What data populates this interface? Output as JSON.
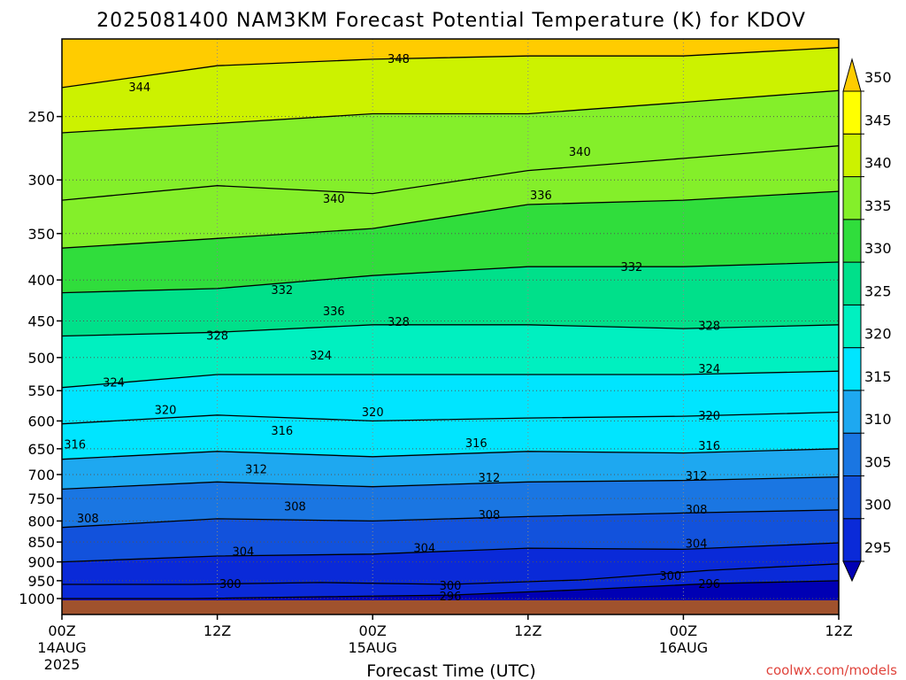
{
  "chart_data": {
    "type": "heatmap",
    "title": "2025081400 NAM3KM Forecast Potential Temperature (K) for KDOV",
    "xlabel": "Forecast Time (UTC)",
    "ylabel": "",
    "y_scale": "log",
    "ylim": [
      1000,
      200
    ],
    "xlim_hours": [
      0,
      60
    ],
    "y_ticks": [
      "250",
      "300",
      "350",
      "400",
      "450",
      "500",
      "550",
      "600",
      "650",
      "700",
      "750",
      "800",
      "850",
      "900",
      "950",
      "1000"
    ],
    "x_ticks": [
      {
        "hour": 0,
        "label": "00Z",
        "sub1": "14AUG",
        "sub2": "2025"
      },
      {
        "hour": 12,
        "label": "12Z",
        "sub1": "",
        "sub2": ""
      },
      {
        "hour": 24,
        "label": "00Z",
        "sub1": "15AUG",
        "sub2": ""
      },
      {
        "hour": 36,
        "label": "12Z",
        "sub1": "",
        "sub2": ""
      },
      {
        "hour": 48,
        "label": "00Z",
        "sub1": "16AUG",
        "sub2": ""
      },
      {
        "hour": 60,
        "label": "12Z",
        "sub1": "",
        "sub2": ""
      }
    ],
    "colorbar": {
      "levels": [
        295,
        300,
        305,
        310,
        315,
        320,
        325,
        330,
        335,
        340,
        345,
        350
      ],
      "labels": [
        "295",
        "300",
        "305",
        "310",
        "315",
        "320",
        "325",
        "330",
        "335",
        "340",
        "345",
        "350"
      ],
      "colors": [
        "#0000b4",
        "#0a2ad8",
        "#1252dc",
        "#1a76e2",
        "#1ea8f0",
        "#00e5ff",
        "#00f0c0",
        "#00e08a",
        "#30dd3c",
        "#84ef2a",
        "#ccf200",
        "#ffff00",
        "#ffcc00"
      ]
    },
    "series": [
      {
        "name": "296",
        "values": [
          {
            "hour": 0,
            "p": 1000
          },
          {
            "hour": 10,
            "p": 1000
          },
          {
            "hour": 20,
            "p": 995
          },
          {
            "hour": 30,
            "p": 990
          },
          {
            "hour": 40,
            "p": 975
          },
          {
            "hour": 50,
            "p": 958
          },
          {
            "hour": 60,
            "p": 950
          }
        ]
      },
      {
        "name": "300",
        "values": [
          {
            "hour": 0,
            "p": 960
          },
          {
            "hour": 10,
            "p": 960
          },
          {
            "hour": 20,
            "p": 955
          },
          {
            "hour": 30,
            "p": 960
          },
          {
            "hour": 40,
            "p": 948
          },
          {
            "hour": 50,
            "p": 922
          },
          {
            "hour": 60,
            "p": 905
          }
        ]
      },
      {
        "name": "304",
        "values": [
          {
            "hour": 0,
            "p": 900
          },
          {
            "hour": 12,
            "p": 885
          },
          {
            "hour": 24,
            "p": 880
          },
          {
            "hour": 36,
            "p": 865
          },
          {
            "hour": 48,
            "p": 868
          },
          {
            "hour": 60,
            "p": 852
          }
        ]
      },
      {
        "name": "308",
        "values": [
          {
            "hour": 0,
            "p": 815
          },
          {
            "hour": 12,
            "p": 795
          },
          {
            "hour": 24,
            "p": 800
          },
          {
            "hour": 36,
            "p": 790
          },
          {
            "hour": 48,
            "p": 782
          },
          {
            "hour": 60,
            "p": 775
          }
        ]
      },
      {
        "name": "312",
        "values": [
          {
            "hour": 0,
            "p": 730
          },
          {
            "hour": 12,
            "p": 715
          },
          {
            "hour": 24,
            "p": 725
          },
          {
            "hour": 36,
            "p": 715
          },
          {
            "hour": 48,
            "p": 712
          },
          {
            "hour": 60,
            "p": 705
          }
        ]
      },
      {
        "name": "316",
        "values": [
          {
            "hour": 0,
            "p": 670
          },
          {
            "hour": 12,
            "p": 655
          },
          {
            "hour": 24,
            "p": 665
          },
          {
            "hour": 36,
            "p": 655
          },
          {
            "hour": 48,
            "p": 658
          },
          {
            "hour": 60,
            "p": 650
          }
        ]
      },
      {
        "name": "320",
        "values": [
          {
            "hour": 0,
            "p": 605
          },
          {
            "hour": 12,
            "p": 590
          },
          {
            "hour": 24,
            "p": 600
          },
          {
            "hour": 36,
            "p": 595
          },
          {
            "hour": 48,
            "p": 592
          },
          {
            "hour": 60,
            "p": 585
          }
        ]
      },
      {
        "name": "324",
        "values": [
          {
            "hour": 0,
            "p": 545
          },
          {
            "hour": 12,
            "p": 525
          },
          {
            "hour": 24,
            "p": 525
          },
          {
            "hour": 36,
            "p": 525
          },
          {
            "hour": 48,
            "p": 525
          },
          {
            "hour": 60,
            "p": 520
          }
        ]
      },
      {
        "name": "328",
        "values": [
          {
            "hour": 0,
            "p": 470
          },
          {
            "hour": 12,
            "p": 465
          },
          {
            "hour": 24,
            "p": 455
          },
          {
            "hour": 36,
            "p": 455
          },
          {
            "hour": 48,
            "p": 460
          },
          {
            "hour": 60,
            "p": 455
          }
        ]
      },
      {
        "name": "332",
        "values": [
          {
            "hour": 0,
            "p": 415
          },
          {
            "hour": 12,
            "p": 410
          },
          {
            "hour": 24,
            "p": 395
          },
          {
            "hour": 36,
            "p": 385
          },
          {
            "hour": 48,
            "p": 385
          },
          {
            "hour": 60,
            "p": 380
          }
        ]
      },
      {
        "name": "336",
        "values": [
          {
            "hour": 0,
            "p": 365
          },
          {
            "hour": 12,
            "p": 355
          },
          {
            "hour": 24,
            "p": 345
          },
          {
            "hour": 36,
            "p": 322
          },
          {
            "hour": 48,
            "p": 318
          },
          {
            "hour": 60,
            "p": 310
          }
        ]
      },
      {
        "name": "340",
        "values": [
          {
            "hour": 0,
            "p": 318
          },
          {
            "hour": 12,
            "p": 305
          },
          {
            "hour": 24,
            "p": 312
          },
          {
            "hour": 36,
            "p": 292
          },
          {
            "hour": 48,
            "p": 282
          },
          {
            "hour": 60,
            "p": 272
          }
        ]
      },
      {
        "name": "344",
        "values": [
          {
            "hour": 0,
            "p": 262
          },
          {
            "hour": 12,
            "p": 255
          },
          {
            "hour": 24,
            "p": 248
          },
          {
            "hour": 36,
            "p": 248
          },
          {
            "hour": 48,
            "p": 240
          },
          {
            "hour": 60,
            "p": 232
          }
        ]
      },
      {
        "name": "348",
        "values": [
          {
            "hour": 0,
            "p": 230
          },
          {
            "hour": 12,
            "p": 216
          },
          {
            "hour": 24,
            "p": 212
          },
          {
            "hour": 36,
            "p": 210
          },
          {
            "hour": 48,
            "p": 210
          },
          {
            "hour": 60,
            "p": 205
          }
        ]
      }
    ],
    "contour_labels": [
      {
        "text": "344",
        "hour": 6,
        "p": 230
      },
      {
        "text": "348",
        "hour": 26,
        "p": 212
      },
      {
        "text": "340",
        "hour": 40,
        "p": 277
      },
      {
        "text": "340",
        "hour": 21,
        "p": 317
      },
      {
        "text": "336",
        "hour": 37,
        "p": 314
      },
      {
        "text": "332",
        "hour": 44,
        "p": 386
      },
      {
        "text": "332",
        "hour": 17,
        "p": 412
      },
      {
        "text": "336",
        "hour": 21,
        "p": 438
      },
      {
        "text": "328",
        "hour": 26,
        "p": 452
      },
      {
        "text": "328",
        "hour": 12,
        "p": 470
      },
      {
        "text": "328",
        "hour": 50,
        "p": 457
      },
      {
        "text": "324",
        "hour": 20,
        "p": 498
      },
      {
        "text": "324",
        "hour": 50,
        "p": 517
      },
      {
        "text": "324",
        "hour": 4,
        "p": 538
      },
      {
        "text": "320",
        "hour": 8,
        "p": 582
      },
      {
        "text": "320",
        "hour": 24,
        "p": 586
      },
      {
        "text": "320",
        "hour": 50,
        "p": 592
      },
      {
        "text": "316",
        "hour": 1,
        "p": 643
      },
      {
        "text": "316",
        "hour": 17,
        "p": 618
      },
      {
        "text": "316",
        "hour": 32,
        "p": 640
      },
      {
        "text": "316",
        "hour": 50,
        "p": 645
      },
      {
        "text": "312",
        "hour": 15,
        "p": 690
      },
      {
        "text": "312",
        "hour": 33,
        "p": 707
      },
      {
        "text": "312",
        "hour": 49,
        "p": 704
      },
      {
        "text": "308",
        "hour": 18,
        "p": 768
      },
      {
        "text": "308",
        "hour": 2,
        "p": 795
      },
      {
        "text": "308",
        "hour": 33,
        "p": 787
      },
      {
        "text": "308",
        "hour": 49,
        "p": 775
      },
      {
        "text": "304",
        "hour": 14,
        "p": 875
      },
      {
        "text": "304",
        "hour": 28,
        "p": 866
      },
      {
        "text": "304",
        "hour": 49,
        "p": 855
      },
      {
        "text": "300",
        "hour": 13,
        "p": 960
      },
      {
        "text": "300",
        "hour": 30,
        "p": 965
      },
      {
        "text": "300",
        "hour": 47,
        "p": 938
      },
      {
        "text": "296",
        "hour": 30,
        "p": 995
      },
      {
        "text": "296",
        "hour": 50,
        "p": 960
      }
    ]
  },
  "credit": "coolwx.com/models"
}
